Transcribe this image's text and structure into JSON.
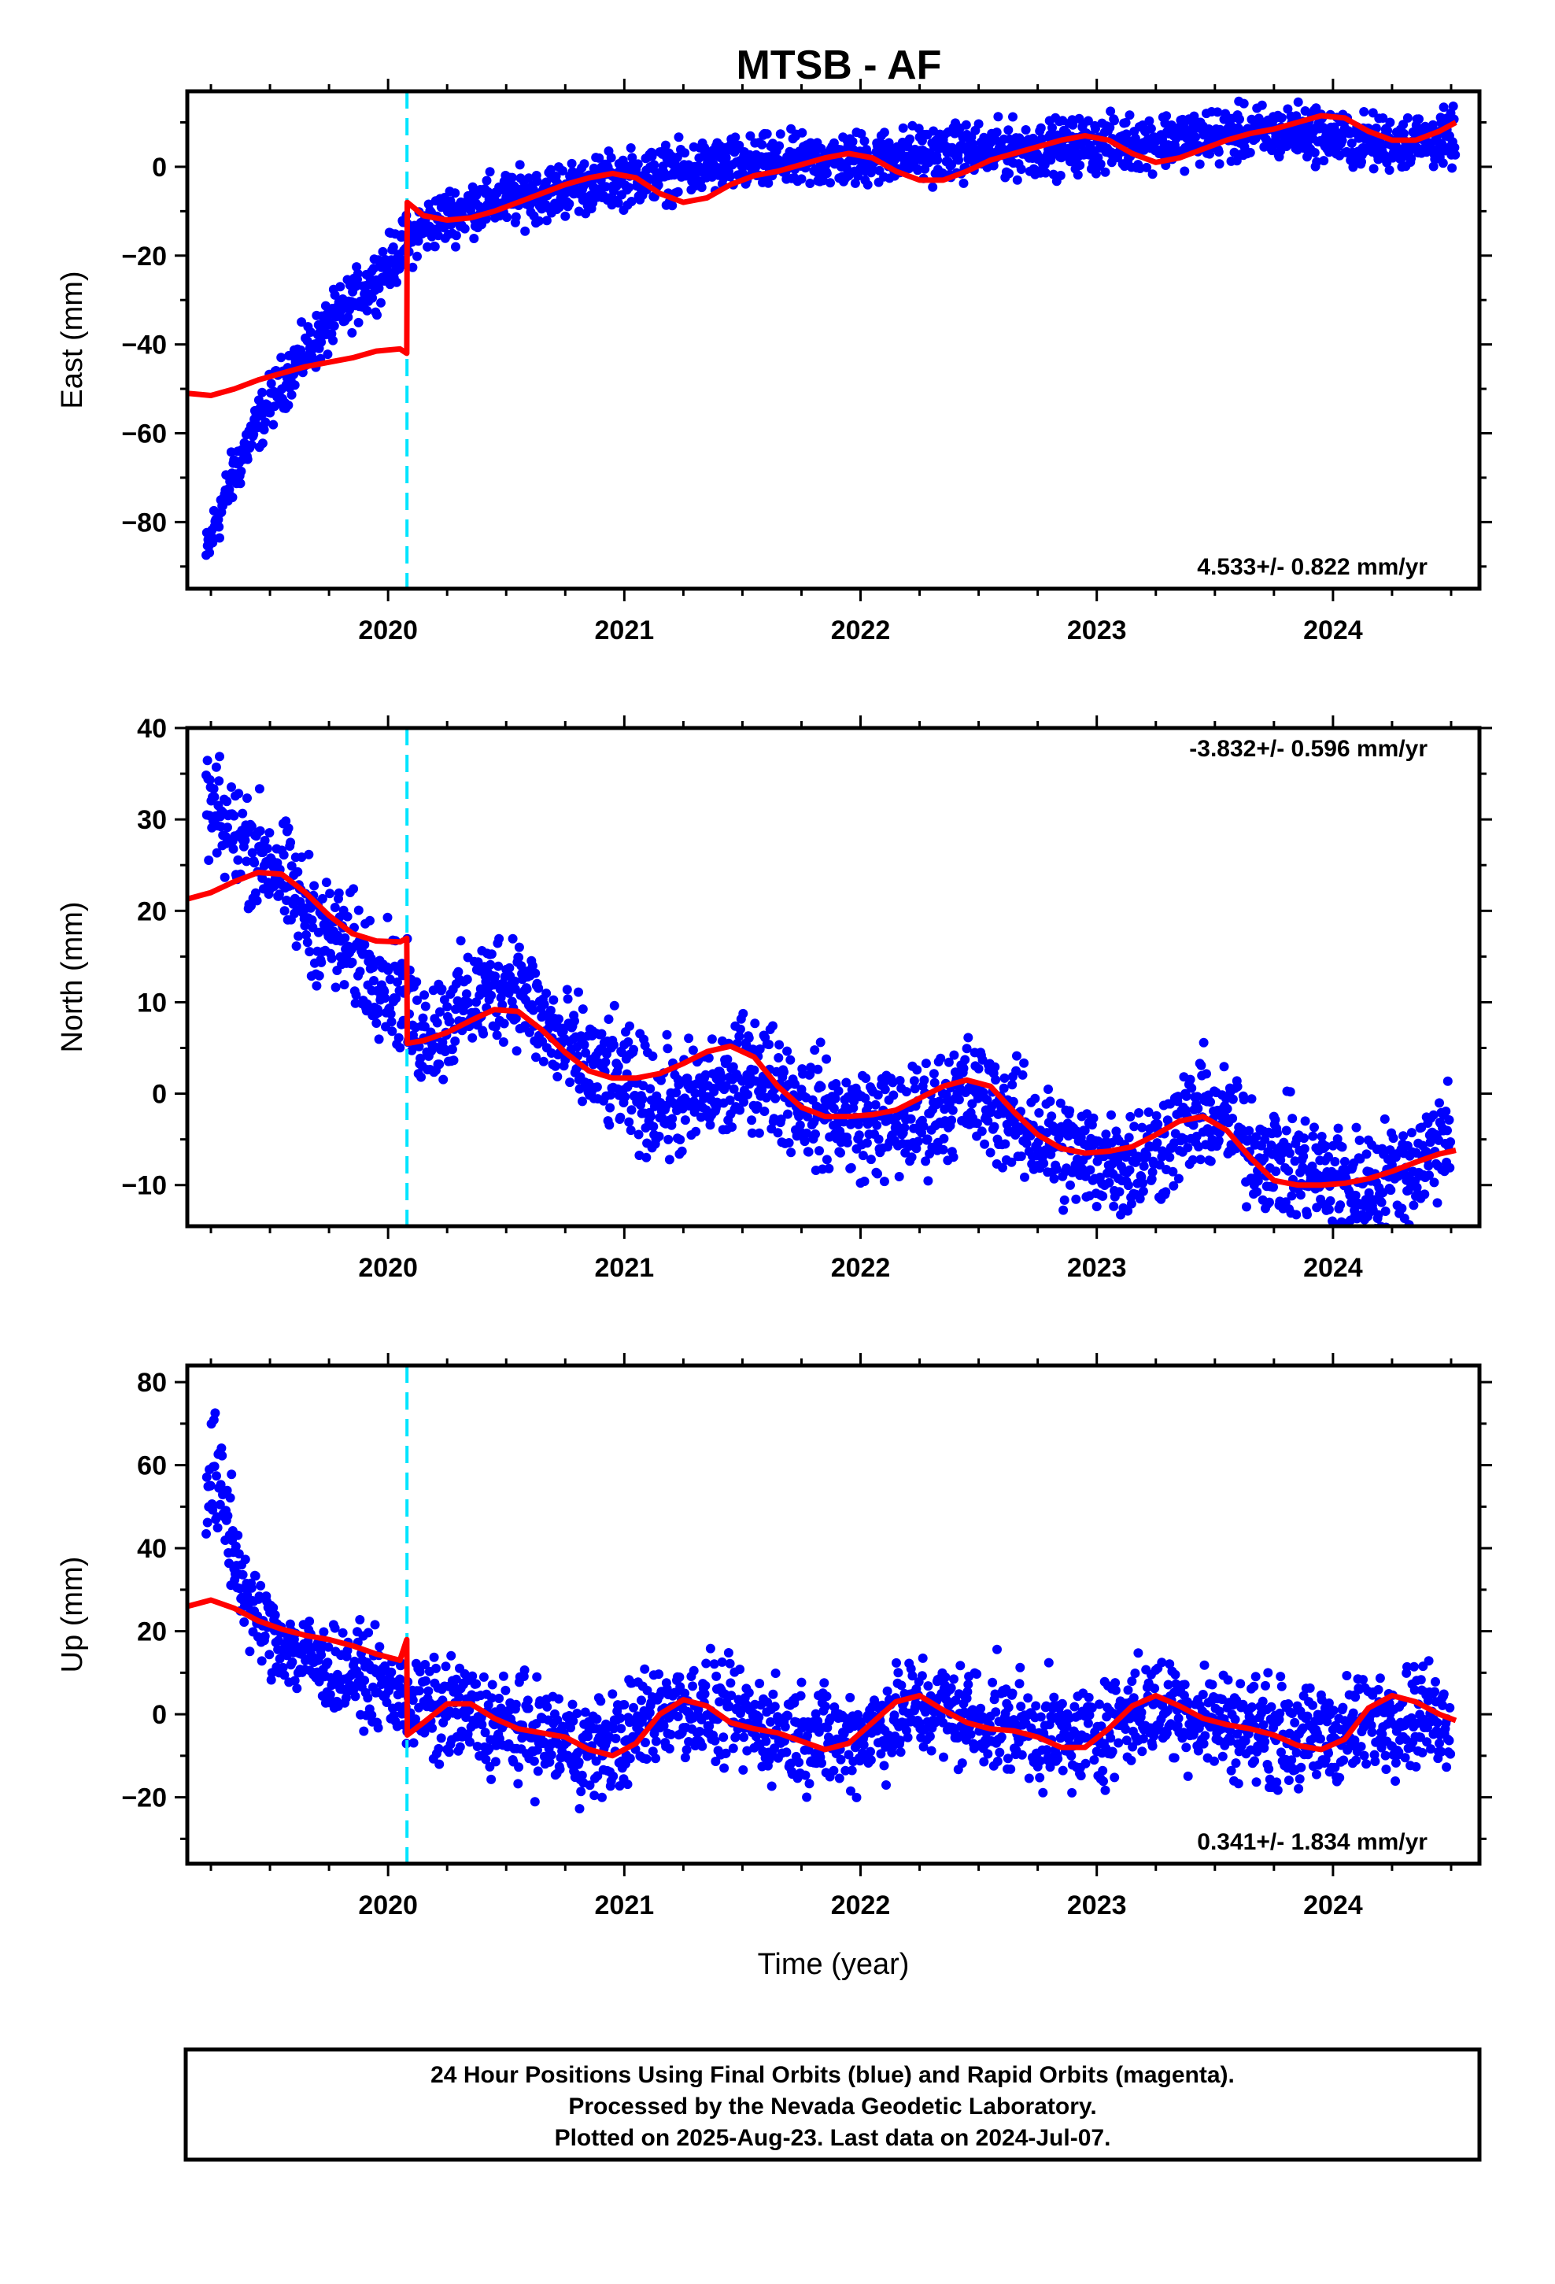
{
  "title": "MTSB - AF",
  "colors": {
    "points": "#0000ff",
    "model": "#ff0000",
    "offset_line": "#00e5ff",
    "frame": "#000000"
  },
  "footer": {
    "lines": [
      "24 Hour Positions Using Final Orbits (blue) and Rapid Orbits (magenta).",
      "Processed by the Nevada Geodetic Laboratory.",
      "Plotted on 2025-Aug-23. Last data on 2024-Jul-07."
    ]
  },
  "chart_data": [
    {
      "type": "scatter",
      "id": "east",
      "ylabel": "East (mm)",
      "xlabel": "",
      "xlim": [
        2019.15,
        2024.62
      ],
      "ylim": [
        -95,
        17
      ],
      "x_ticks": [
        2020,
        2021,
        2022,
        2023,
        2024
      ],
      "y_ticks": [
        0,
        -20,
        -40,
        -60,
        -80
      ],
      "rate_text": "4.533+/- 0.822 mm/yr",
      "rate_position": "bottom-right",
      "offset_epoch": 2020.08,
      "series": [
        {
          "role": "daily_positions",
          "color": "#0000ff",
          "x": [
            2019.23,
            2019.26,
            2019.3,
            2019.35,
            2019.4,
            2019.45,
            2019.5,
            2019.55,
            2019.6,
            2019.65,
            2019.7,
            2019.75,
            2019.8,
            2019.85,
            2019.9,
            2019.95,
            2020.0,
            2020.05,
            2020.08,
            2020.12,
            2020.18,
            2020.25,
            2020.35,
            2020.45,
            2020.55,
            2020.65,
            2020.75,
            2020.85,
            2020.95,
            2021.05,
            2021.15,
            2021.25,
            2021.35,
            2021.45,
            2021.55,
            2021.65,
            2021.75,
            2021.85,
            2021.95,
            2022.05,
            2022.15,
            2022.25,
            2022.35,
            2022.45,
            2022.55,
            2022.65,
            2022.75,
            2022.85,
            2022.95,
            2023.05,
            2023.15,
            2023.25,
            2023.35,
            2023.45,
            2023.55,
            2023.65,
            2023.75,
            2023.85,
            2023.95,
            2024.05,
            2024.15,
            2024.25,
            2024.35,
            2024.45,
            2024.52
          ],
          "y": [
            -88,
            -82,
            -76,
            -69,
            -63,
            -58,
            -53,
            -49,
            -45,
            -42,
            -39,
            -36,
            -33,
            -30,
            -28,
            -25,
            -22,
            -19,
            -17,
            -15,
            -13,
            -11,
            -9,
            -8,
            -7,
            -6,
            -5,
            -4,
            -3,
            -2,
            -1.5,
            -1,
            0,
            0.5,
            0.5,
            1,
            1,
            1.5,
            1.5,
            2,
            2.5,
            3,
            3,
            3.5,
            3.5,
            4,
            4,
            4.5,
            5,
            5,
            5.5,
            6,
            6.5,
            7,
            7,
            7.5,
            7.5,
            8,
            7.5,
            6,
            5.5,
            5.5,
            6,
            6,
            6.5
          ],
          "spread": [
            3,
            3,
            3,
            3,
            3,
            3,
            3,
            3,
            3,
            3,
            3,
            3,
            3,
            3,
            3,
            3,
            3,
            3,
            3,
            3,
            3,
            3,
            3,
            3,
            3,
            3,
            3,
            3,
            3,
            3,
            3,
            3,
            3,
            3,
            3,
            3,
            3,
            3,
            3,
            3,
            3,
            3,
            3,
            3,
            3,
            3,
            3,
            3,
            3,
            3,
            3,
            3,
            3,
            3,
            3,
            3,
            3,
            3,
            3,
            3,
            3,
            3,
            3,
            3,
            3
          ]
        },
        {
          "role": "model",
          "color": "#ff0000",
          "x": [
            2019.15,
            2019.25,
            2019.35,
            2019.45,
            2019.55,
            2019.65,
            2019.75,
            2019.85,
            2019.95,
            2020.05,
            2020.079,
            2020.081,
            2020.15,
            2020.25,
            2020.35,
            2020.45,
            2020.55,
            2020.65,
            2020.75,
            2020.85,
            2020.95,
            2021.05,
            2021.15,
            2021.25,
            2021.35,
            2021.45,
            2021.55,
            2021.65,
            2021.75,
            2021.85,
            2021.95,
            2022.05,
            2022.15,
            2022.25,
            2022.35,
            2022.45,
            2022.55,
            2022.65,
            2022.75,
            2022.85,
            2022.95,
            2023.05,
            2023.15,
            2023.25,
            2023.35,
            2023.45,
            2023.55,
            2023.65,
            2023.75,
            2023.85,
            2023.95,
            2024.05,
            2024.15,
            2024.25,
            2024.35,
            2024.45,
            2024.52
          ],
          "y": [
            -51,
            -51.5,
            -50,
            -48,
            -46.5,
            -45,
            -44,
            -43,
            -41.5,
            -41,
            -42,
            -8,
            -11,
            -12,
            -11.5,
            -10,
            -8,
            -6,
            -4,
            -2.5,
            -1.5,
            -2.5,
            -6,
            -8,
            -7,
            -4,
            -2,
            -1,
            0.5,
            2,
            3,
            2,
            -1,
            -3,
            -3,
            -1,
            1.5,
            3,
            4.5,
            6,
            7,
            6,
            3,
            1,
            2,
            4,
            6,
            7.5,
            8.5,
            10,
            11.5,
            11,
            8,
            6,
            6,
            8,
            10
          ]
        }
      ]
    },
    {
      "type": "scatter",
      "id": "north",
      "ylabel": "North (mm)",
      "xlabel": "",
      "xlim": [
        2019.15,
        2024.62
      ],
      "ylim": [
        -14.5,
        40
      ],
      "x_ticks": [
        2020,
        2021,
        2022,
        2023,
        2024
      ],
      "y_ticks": [
        40,
        30,
        20,
        10,
        0,
        -10
      ],
      "rate_text": "-3.832+/- 0.596 mm/yr",
      "rate_position": "top-right",
      "offset_epoch": 2020.08,
      "series": [
        {
          "role": "daily_positions",
          "color": "#0000ff",
          "x": [
            2019.23,
            2019.27,
            2019.32,
            2019.37,
            2019.42,
            2019.47,
            2019.52,
            2019.57,
            2019.62,
            2019.67,
            2019.72,
            2019.77,
            2019.82,
            2019.87,
            2019.92,
            2019.97,
            2020.02,
            2020.07,
            2020.12,
            2020.2,
            2020.3,
            2020.4,
            2020.5,
            2020.55,
            2020.65,
            2020.75,
            2020.85,
            2020.95,
            2021.05,
            2021.15,
            2021.25,
            2021.35,
            2021.45,
            2021.55,
            2021.65,
            2021.75,
            2021.85,
            2021.95,
            2022.05,
            2022.15,
            2022.25,
            2022.35,
            2022.45,
            2022.55,
            2022.65,
            2022.75,
            2022.85,
            2022.95,
            2023.05,
            2023.15,
            2023.25,
            2023.35,
            2023.45,
            2023.55,
            2023.65,
            2023.75,
            2023.85,
            2023.95,
            2024.05,
            2024.15,
            2024.25,
            2024.35,
            2024.45,
            2024.5
          ],
          "y": [
            32,
            30,
            29,
            28,
            27,
            26,
            25,
            23,
            21,
            19.5,
            18,
            17,
            16,
            15,
            14,
            13,
            12,
            10,
            7,
            7,
            9,
            11,
            12.5,
            12,
            8,
            5,
            3,
            2,
            0,
            -1,
            -1,
            0,
            1,
            3,
            1,
            -1,
            -2,
            -3,
            -3,
            -3.5,
            -3,
            -1,
            0,
            -1,
            -3,
            -4.5,
            -6,
            -7,
            -7,
            -7.5,
            -6,
            -4,
            -2,
            -3,
            -6,
            -7,
            -8,
            -9,
            -10,
            -10,
            -9,
            -8,
            -5,
            -3
          ],
          "spread": [
            3,
            3,
            3,
            3,
            3,
            3,
            3,
            3,
            3,
            3,
            3,
            3,
            3,
            3,
            3,
            3,
            3,
            3,
            3,
            3,
            3,
            3,
            3,
            3,
            3,
            3,
            3,
            3,
            3,
            3,
            3,
            3,
            3,
            3,
            3,
            3,
            3,
            3,
            3,
            3,
            3,
            3,
            3,
            3,
            3,
            3,
            3,
            3,
            3,
            3,
            3,
            3,
            3,
            3,
            3,
            3,
            3,
            3,
            3,
            3,
            3,
            3,
            3,
            3
          ]
        },
        {
          "role": "model",
          "color": "#ff0000",
          "x": [
            2019.15,
            2019.25,
            2019.35,
            2019.45,
            2019.55,
            2019.65,
            2019.75,
            2019.85,
            2019.95,
            2020.05,
            2020.079,
            2020.081,
            2020.15,
            2020.25,
            2020.35,
            2020.45,
            2020.55,
            2020.65,
            2020.75,
            2020.85,
            2020.95,
            2021.05,
            2021.15,
            2021.25,
            2021.35,
            2021.45,
            2021.55,
            2021.65,
            2021.75,
            2021.85,
            2021.95,
            2022.05,
            2022.15,
            2022.25,
            2022.35,
            2022.45,
            2022.55,
            2022.65,
            2022.75,
            2022.85,
            2022.95,
            2023.05,
            2023.15,
            2023.25,
            2023.35,
            2023.45,
            2023.55,
            2023.65,
            2023.75,
            2023.85,
            2023.95,
            2024.05,
            2024.15,
            2024.25,
            2024.35,
            2024.45,
            2024.52
          ],
          "y": [
            21.3,
            22,
            23.2,
            24.2,
            24,
            22,
            19.5,
            17.5,
            16.7,
            16.6,
            17,
            5.5,
            5.8,
            6.7,
            8,
            9.2,
            9,
            7,
            4.5,
            2.5,
            1.7,
            1.7,
            2.2,
            3.3,
            4.6,
            5.2,
            4,
            0.8,
            -1.5,
            -2.5,
            -2.5,
            -2.3,
            -1.8,
            -0.5,
            0.8,
            1.5,
            0.8,
            -2,
            -4.5,
            -6,
            -6.5,
            -6.3,
            -5.8,
            -4.5,
            -3,
            -2.5,
            -4,
            -7,
            -9.5,
            -10,
            -10,
            -9.8,
            -9.3,
            -8.5,
            -7.5,
            -6.6,
            -6.2
          ]
        }
      ]
    },
    {
      "type": "scatter",
      "id": "up",
      "ylabel": "Up (mm)",
      "xlabel": "Time (year)",
      "xlim": [
        2019.15,
        2024.62
      ],
      "ylim": [
        -36,
        84
      ],
      "x_ticks": [
        2020,
        2021,
        2022,
        2023,
        2024
      ],
      "y_ticks": [
        80,
        60,
        40,
        20,
        0,
        -20
      ],
      "rate_text": "0.341+/- 1.834 mm/yr",
      "rate_position": "bottom-right",
      "offset_epoch": 2020.08,
      "series": [
        {
          "role": "daily_positions",
          "color": "#0000ff",
          "x": [
            2019.23,
            2019.26,
            2019.3,
            2019.34,
            2019.38,
            2019.42,
            2019.46,
            2019.5,
            2019.55,
            2019.6,
            2019.65,
            2019.7,
            2019.75,
            2019.8,
            2019.85,
            2019.9,
            2019.95,
            2020.0,
            2020.05,
            2020.1,
            2020.2,
            2020.3,
            2020.4,
            2020.5,
            2020.6,
            2020.7,
            2020.8,
            2020.9,
            2021.0,
            2021.1,
            2021.2,
            2021.3,
            2021.4,
            2021.5,
            2021.6,
            2021.7,
            2021.8,
            2021.9,
            2022.0,
            2022.1,
            2022.2,
            2022.3,
            2022.4,
            2022.5,
            2022.6,
            2022.7,
            2022.8,
            2022.9,
            2023.0,
            2023.1,
            2023.2,
            2023.3,
            2023.4,
            2023.5,
            2023.6,
            2023.7,
            2023.8,
            2023.9,
            2024.0,
            2024.1,
            2024.2,
            2024.3,
            2024.4,
            2024.5
          ],
          "y": [
            55,
            58,
            50,
            42,
            32,
            26,
            22,
            20,
            18,
            15,
            14,
            12,
            11,
            10,
            10,
            9,
            8,
            6,
            4,
            2,
            0,
            1,
            -2,
            -3,
            -4,
            -6,
            -8,
            -8,
            -5,
            -1,
            2,
            1,
            0,
            -2,
            -3,
            -4,
            -5,
            -6,
            -5,
            -2,
            1,
            2,
            0,
            -1,
            -2,
            -3,
            -5,
            -6,
            -4,
            -1,
            1,
            2,
            0,
            -1,
            -3,
            -4,
            -5,
            -6,
            -5,
            -3,
            -1,
            0,
            0,
            -1
          ],
          "spread": [
            8,
            8,
            8,
            6,
            5,
            5,
            5,
            5,
            5,
            5,
            5,
            5,
            5,
            5,
            5,
            5,
            5,
            5,
            5,
            6,
            6,
            6,
            6,
            6,
            6,
            6,
            6,
            6,
            6,
            6,
            6,
            6,
            6,
            6,
            6,
            6,
            6,
            6,
            6,
            6,
            6,
            6,
            6,
            6,
            6,
            6,
            6,
            6,
            6,
            6,
            6,
            6,
            6,
            6,
            6,
            6,
            6,
            6,
            6,
            6,
            6,
            6,
            6,
            6
          ]
        },
        {
          "role": "model",
          "color": "#ff0000",
          "x": [
            2019.15,
            2019.25,
            2019.35,
            2019.45,
            2019.55,
            2019.65,
            2019.75,
            2019.85,
            2019.95,
            2020.05,
            2020.079,
            2020.081,
            2020.15,
            2020.25,
            2020.35,
            2020.45,
            2020.55,
            2020.65,
            2020.75,
            2020.85,
            2020.95,
            2021.05,
            2021.15,
            2021.25,
            2021.35,
            2021.45,
            2021.55,
            2021.65,
            2021.75,
            2021.85,
            2021.95,
            2022.05,
            2022.15,
            2022.25,
            2022.35,
            2022.45,
            2022.55,
            2022.65,
            2022.75,
            2022.85,
            2022.95,
            2023.05,
            2023.15,
            2023.25,
            2023.35,
            2023.45,
            2023.55,
            2023.65,
            2023.75,
            2023.85,
            2023.95,
            2024.05,
            2024.15,
            2024.25,
            2024.35,
            2024.45,
            2024.52
          ],
          "y": [
            26,
            27.5,
            25.5,
            22.5,
            20.5,
            19,
            18,
            16.5,
            14.5,
            13,
            18,
            -5,
            -2,
            2.5,
            2.5,
            -1,
            -3.5,
            -4.5,
            -5.5,
            -8.5,
            -10,
            -7,
            0,
            3.5,
            2,
            -2,
            -3.5,
            -4.5,
            -6.5,
            -8.5,
            -7,
            -2,
            3,
            4.5,
            1,
            -2,
            -3.5,
            -4,
            -5.5,
            -8,
            -8,
            -3.5,
            2,
            4.5,
            2,
            -1,
            -2.5,
            -3.5,
            -5,
            -7.5,
            -8.5,
            -6,
            1.5,
            4.5,
            3,
            0,
            -1.5
          ]
        }
      ]
    }
  ]
}
